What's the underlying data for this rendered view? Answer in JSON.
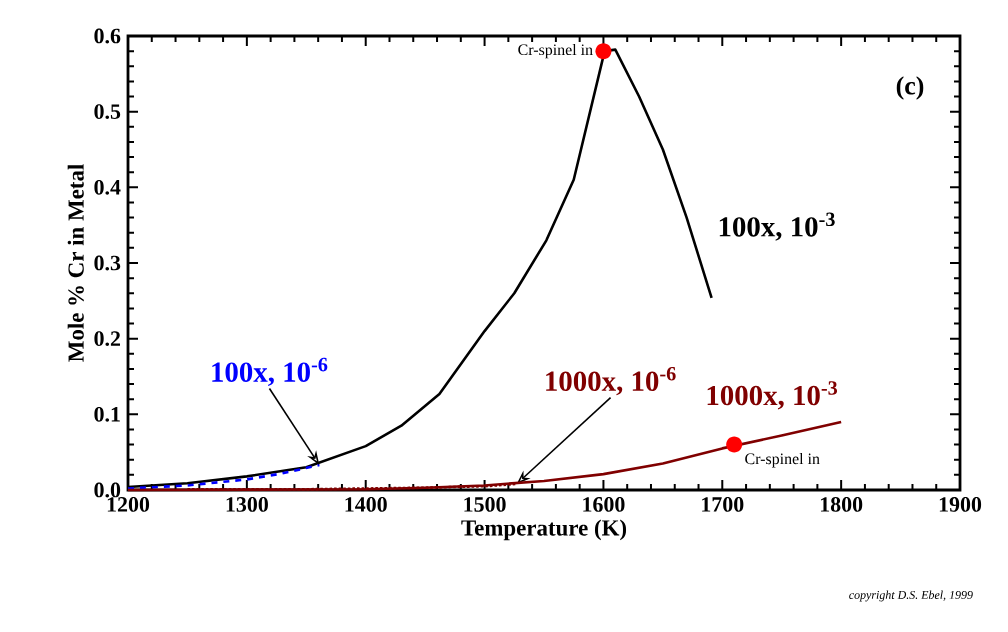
{
  "chart_data": {
    "type": "line",
    "xlabel": "Temperature (K)",
    "ylabel": "Mole % Cr in Metal",
    "xlim": [
      1200,
      1900
    ],
    "xticks": [
      1200,
      1300,
      1400,
      1500,
      1600,
      1700,
      1800,
      1900
    ],
    "ylim": [
      0,
      0.6
    ],
    "yticks": [
      {
        "value": 0,
        "label": "0.0"
      },
      0.1,
      0.2,
      0.3,
      0.4,
      0.5,
      0.6
    ],
    "grid": false,
    "legend": false,
    "marker": "none",
    "series": [
      {
        "name": "100x, 10$^{-3}$",
        "color": "#000000",
        "line_style": "solid",
        "x": [
          1200,
          1250,
          1300,
          1350,
          1400,
          1430,
          1462,
          1500,
          1525,
          1552,
          1575,
          1601,
          1610,
          1630,
          1650,
          1670,
          1691
        ],
        "values": [
          0.004,
          0.009,
          0.018,
          0.03,
          0.058,
          0.085,
          0.127,
          0.21,
          0.26,
          0.33,
          0.41,
          0.58,
          0.582,
          0.52,
          0.45,
          0.36,
          0.254
        ]
      },
      {
        "name": "100x, 10$^{-6}$",
        "color": "#0000ff",
        "line_style": "dashed",
        "x": [
          1200,
          1250,
          1300,
          1330,
          1361
        ],
        "values": [
          0.002,
          0.006,
          0.014,
          0.022,
          0.033
        ]
      },
      {
        "name": "1000x, 10$^{-6}$",
        "color": "#800000",
        "line_style": "dotted",
        "x": [
          1250,
          1300,
          1350,
          1400,
          1450,
          1500,
          1527
        ],
        "values": [
          0.001,
          0.001,
          0.001,
          0.002,
          0.003,
          0.005,
          0.008
        ]
      },
      {
        "name": "1000x, 10$^{-3}$",
        "color": "#800000",
        "line_style": "solid",
        "x": [
          1200,
          1400,
          1450,
          1500,
          1550,
          1600,
          1650,
          1700,
          1750,
          1800
        ],
        "values": [
          0,
          0.001,
          0.003,
          0.006,
          0.012,
          0.021,
          0.035,
          0.055,
          0.072,
          0.09
        ]
      }
    ],
    "annotations": [
      {
        "text": "Cr-spinel in",
        "x": 1600,
        "y": 0.58
      },
      {
        "text": "Cr-spinel in",
        "x": 1710,
        "y": 0.06
      },
      "(c)",
      "copyright D.S. Ebel, 1999"
    ]
  }
}
